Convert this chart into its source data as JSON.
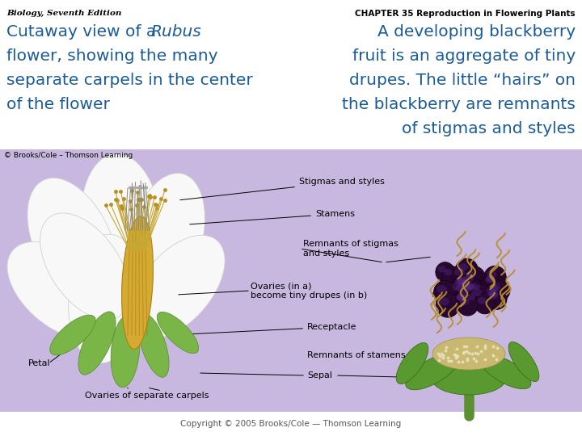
{
  "bg_color": "#ffffff",
  "header_left": "Biology, Seventh Edition",
  "header_right": "CHAPTER 35 Reproduction in Flowering Plants",
  "left_text_color": "#1a5c99",
  "right_text_color": "#1a5c99",
  "header_color": "#000000",
  "footer_color": "#555555",
  "credit_color": "#000000",
  "image_bg_color": "#c8b8e0",
  "image_credit": "© Brooks/Cole – Thomson Learning",
  "footer": "Copyright © 2005 Brooks/Cole — Thomson Learning",
  "label_color": "#000000",
  "title_left": [
    "Cutaway view of a ",
    "Rubus",
    "\nflower, showing the many\nseparate carpels in the center\nof the flower"
  ],
  "title_right": [
    "    A developing blackberry\n fruit is an aggregate of tiny\ndrupes. The little “hairs” on\n the blackberry are remnants\n     of stigmas and styles"
  ]
}
